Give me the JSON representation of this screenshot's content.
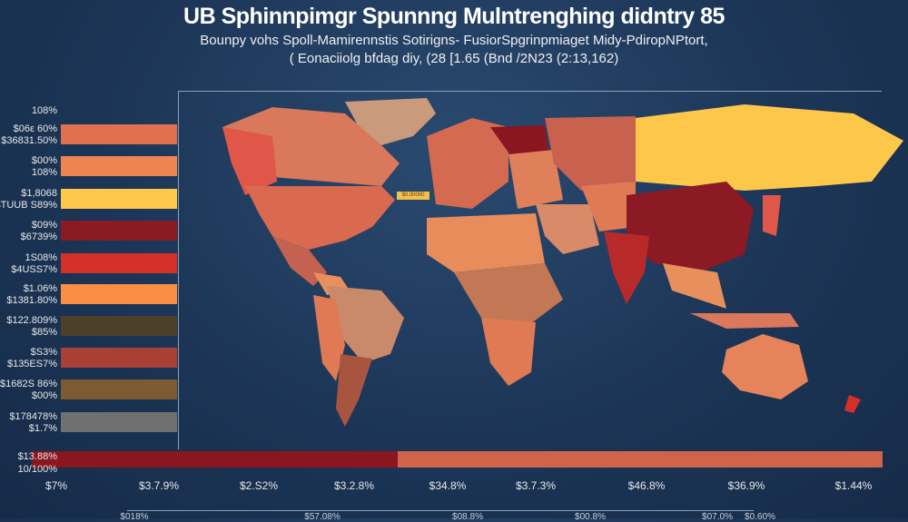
{
  "header": {
    "title": "UB Sphinnpimgr Spunnng Mulntrenghing didntry 85",
    "subtitle_1": "Bounpy vohs Spoll-Mamirennstis Sotirigns- FusiorSpgrinpmiaget Midy-PdiropNPtort,",
    "subtitle_2": "( Eonaciiolg bfdag diy, (28 [1.65 (Bnd /2N23 (2:13,162)"
  },
  "chart_data": {
    "type": "bar",
    "title": "UB Sphinnpimgr Spunnng Mulntrenghing didntry 85",
    "legend_top_label": "108%",
    "categories": [
      {
        "line1": "$06ε 60%",
        "line2": "$36831.50%",
        "color": "#e07050"
      },
      {
        "line1": "$00%",
        "line2": "108%",
        "color": "#ee8550"
      },
      {
        "line1": "$1,8068",
        "line2": "$TUUB S89%",
        "color": "#fdc84a"
      },
      {
        "line1": "$09%",
        "line2": "$6739%",
        "color": "#8b1a24"
      },
      {
        "line1": "1S08%",
        "line2": "$4USS7%",
        "color": "#d43029"
      },
      {
        "line1": "$1.06%",
        "line2": "$1381.80%",
        "color": "#f98d42"
      },
      {
        "line1": "$122.809%",
        "line2": "$85%",
        "color": "#4e3f28"
      },
      {
        "line1": "$S3%",
        "line2": "$135ES7%",
        "color": "#aa4035"
      },
      {
        "line1": "$1682S 86%",
        "line2": "$00%",
        "color": "#7c5a32"
      },
      {
        "line1": "$178478%",
        "line2": "$1.7%",
        "color": "#707070"
      }
    ],
    "total_bar": {
      "line1": "$13.88%",
      "line2": "10/100%",
      "split_fraction": 0.43,
      "colors": [
        "#8a1620",
        "#d0644a"
      ]
    },
    "x_ticks": [
      "$7%",
      "$3.7.9%",
      "$2.S2%",
      "$3.2.8%",
      "$34.8%",
      "$3.7.3%",
      "$46.8%",
      "$36.9%",
      "$1.44%"
    ],
    "x_ticks_secondary": [
      "$018%",
      "$57.08%",
      "$08.8%",
      "$00.8%",
      "$07.0%",
      "$0.60%"
    ],
    "map_tag": "$0.00000"
  }
}
